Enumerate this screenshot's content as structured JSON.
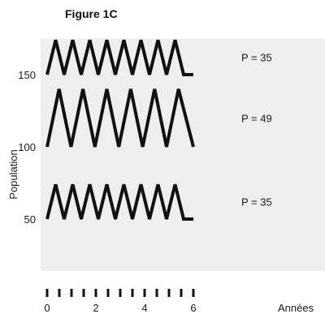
{
  "chart_data": {
    "type": "line",
    "title": "Figure 1C",
    "xlabel": "Années",
    "ylabel": "Population",
    "x_ticks": [
      "0",
      "2",
      "4",
      "6"
    ],
    "y_ticks": [
      "50",
      "100",
      "150"
    ],
    "x_range": [
      0,
      6
    ],
    "y_range": [
      0,
      175
    ],
    "series": [
      {
        "annotation": "P = 35",
        "period_years": 0.7,
        "x": [
          0,
          0.35,
          0.7,
          1.05,
          1.4,
          1.75,
          2.1,
          2.45,
          2.8,
          3.15,
          3.5,
          3.85,
          4.2,
          4.55,
          4.9,
          5.25,
          5.6,
          6.0
        ],
        "y": [
          150,
          174,
          150,
          174,
          150,
          174,
          150,
          174,
          150,
          174,
          150,
          174,
          150,
          174,
          150,
          174,
          150,
          150
        ]
      },
      {
        "annotation": "P = 49",
        "period_years": 0.98,
        "x": [
          0,
          0.49,
          0.98,
          1.47,
          1.96,
          2.45,
          2.94,
          3.43,
          3.92,
          4.41,
          4.9,
          5.39,
          6.0
        ],
        "y": [
          100,
          140,
          100,
          140,
          100,
          140,
          100,
          140,
          100,
          140,
          100,
          140,
          100
        ]
      },
      {
        "annotation": "P = 35",
        "period_years": 0.7,
        "x": [
          0,
          0.35,
          0.7,
          1.05,
          1.4,
          1.75,
          2.1,
          2.45,
          2.8,
          3.15,
          3.5,
          3.85,
          4.2,
          4.55,
          4.9,
          5.25,
          5.6,
          6.0
        ],
        "y": [
          50,
          74,
          50,
          74,
          50,
          74,
          50,
          74,
          50,
          74,
          50,
          74,
          50,
          74,
          50,
          74,
          50,
          50
        ]
      }
    ],
    "bands": [
      {
        "ymin": 136,
        "ymax": 175
      },
      {
        "ymin": 86,
        "ymax": 136
      },
      {
        "ymin": 14,
        "ymax": 86
      }
    ],
    "colors": {
      "trace": "#111111",
      "band": "#eeeeee",
      "background": "#ffffff"
    }
  }
}
